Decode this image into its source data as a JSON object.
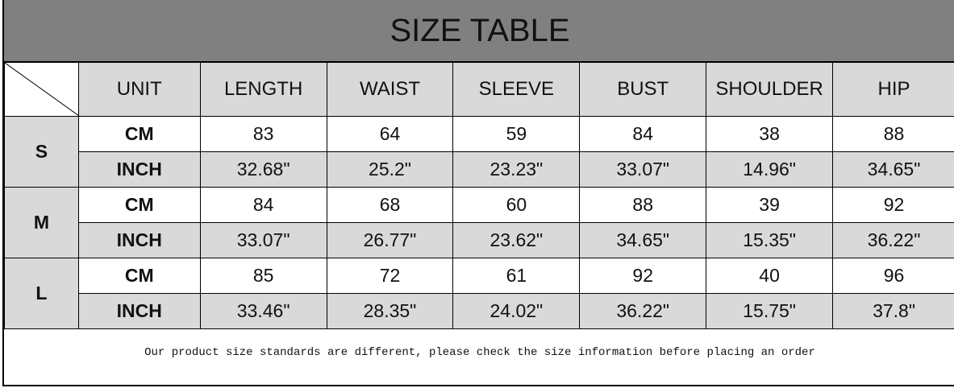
{
  "title": "SIZE TABLE",
  "headers": [
    "UNIT",
    "LENGTH",
    "WAIST",
    "SLEEVE",
    "BUST",
    "SHOULDER",
    "HIP"
  ],
  "sizes": [
    {
      "size": "S",
      "cm": {
        "unit": "CM",
        "values": [
          "83",
          "64",
          "59",
          "84",
          "38",
          "88"
        ]
      },
      "inch": {
        "unit": "INCH",
        "values": [
          "32.68\"",
          "25.2\"",
          "23.23\"",
          "33.07\"",
          "14.96\"",
          "34.65\""
        ]
      }
    },
    {
      "size": "M",
      "cm": {
        "unit": "CM",
        "values": [
          "84",
          "68",
          "60",
          "88",
          "39",
          "92"
        ]
      },
      "inch": {
        "unit": "INCH",
        "values": [
          "33.07\"",
          "26.77\"",
          "23.62\"",
          "34.65\"",
          "15.35\"",
          "36.22\""
        ]
      }
    },
    {
      "size": "L",
      "cm": {
        "unit": "CM",
        "values": [
          "85",
          "72",
          "61",
          "92",
          "40",
          "96"
        ]
      },
      "inch": {
        "unit": "INCH",
        "values": [
          "33.46\"",
          "28.35\"",
          "24.02\"",
          "36.22\"",
          "15.75\"",
          "37.8\""
        ]
      }
    }
  ],
  "note": "Our product size standards are different, please check the size information before placing an order",
  "colors": {
    "title_bg": "#808080",
    "cell_gray": "#d9d9d9"
  }
}
